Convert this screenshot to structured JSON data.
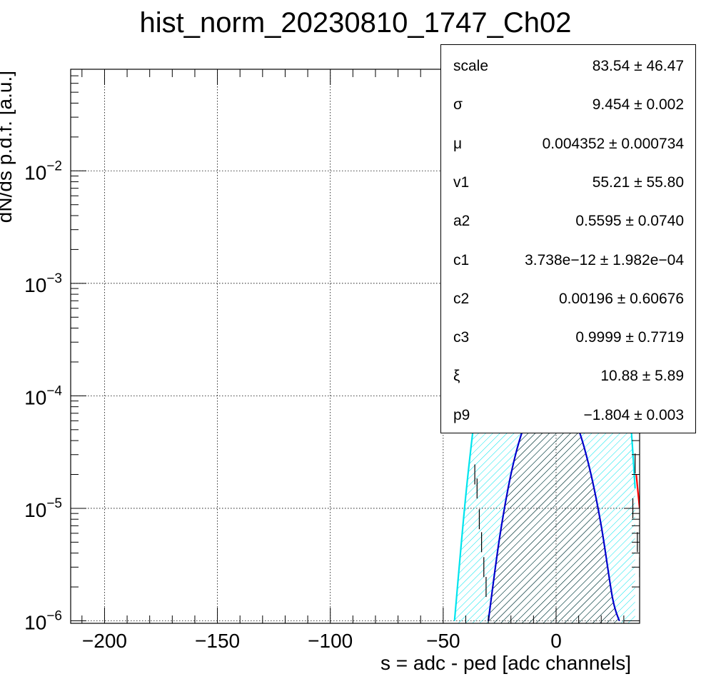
{
  "chart_data": {
    "type": "line",
    "title": "hist_norm_20230810_1747_Ch02",
    "xlabel": "s = adc - ped [adc channels]",
    "ylabel": "dN/ds p.d.f. [a.u.]",
    "xlim": [
      -215,
      37
    ],
    "ylim": [
      9.5e-07,
      0.08
    ],
    "yscale": "log",
    "grid": true,
    "x_ticks": [
      -200,
      -150,
      -100,
      -50,
      0
    ],
    "x_tick_labels": [
      "−200",
      "−150",
      "−100",
      "−50",
      "0"
    ],
    "y_ticks": [
      1e-06,
      1e-05,
      0.0001,
      0.001,
      0.01
    ],
    "y_tick_labels": [
      {
        "base": "10",
        "exp": "−6"
      },
      {
        "base": "10",
        "exp": "−5"
      },
      {
        "base": "10",
        "exp": "−4"
      },
      {
        "base": "10",
        "exp": "−3"
      },
      {
        "base": "10",
        "exp": "−2"
      }
    ],
    "series": [
      {
        "color": "#00e5ee",
        "style": "filled-hatched",
        "x": [
          -45,
          -40,
          -35,
          -30,
          -25,
          -20,
          -15,
          -10,
          -5,
          -2.5,
          0,
          5,
          10,
          15,
          20,
          25,
          30,
          33,
          35
        ],
        "y": [
          1e-06,
          1.3e-05,
          0.0001,
          0.00065,
          0.003,
          0.0095,
          0.0212,
          0.0335,
          0.0415,
          0.042,
          0.041,
          0.0342,
          0.0232,
          0.0126,
          0.0052,
          0.0015,
          0.00025,
          6e-05,
          1.5e-05
        ]
      },
      {
        "color": "#0000cc",
        "style": "filled-hatched",
        "x": [
          -30,
          -25,
          -20,
          -15,
          -10,
          -5,
          -2.5,
          0,
          5,
          10,
          15,
          20,
          25,
          28
        ],
        "y": [
          1e-06,
          5.5e-06,
          2e-05,
          4.8e-05,
          8e-05,
          9.8e-05,
          0.0001,
          9.8e-05,
          8.2e-05,
          5e-05,
          2.2e-05,
          7e-06,
          1.6e-06,
          1e-06
        ]
      },
      {
        "color": "#ff0000",
        "style": "line",
        "x": [
          35.5,
          37
        ],
        "y": [
          2e-05,
          1e-05
        ]
      }
    ],
    "data_points": {
      "x": [
        -36,
        -35,
        -34,
        -33,
        -32,
        -31,
        34,
        35,
        36,
        37
      ],
      "y": [
        2e-05,
        1.5e-05,
        8e-06,
        5e-06,
        3e-06,
        2e-06,
        1e-05,
        2.5e-05,
        5e-06,
        3e-06
      ]
    }
  },
  "stats": [
    {
      "name": "scale",
      "value": "83.54 ± 46.47"
    },
    {
      "name": "σ",
      "value": "9.454 ± 0.002"
    },
    {
      "name": "μ",
      "value": "0.004352 ± 0.000734"
    },
    {
      "name": "v1",
      "value": "55.21 ± 55.80"
    },
    {
      "name": "a2",
      "value": "0.5595 ± 0.0740"
    },
    {
      "name": "c1",
      "value": "3.738e−12 ± 1.982e−04"
    },
    {
      "name": "c2",
      "value": "0.00196 ± 0.60676"
    },
    {
      "name": "c3",
      "value": "0.9999 ± 0.7719"
    },
    {
      "name": "ξ",
      "value": "10.88 ± 5.89"
    },
    {
      "name": "p9",
      "value": "−1.804 ± 0.003"
    }
  ],
  "colors": {
    "cyan": "#00e5ee",
    "blue": "#0000cc",
    "red": "#ff0000",
    "axis": "#000000"
  }
}
